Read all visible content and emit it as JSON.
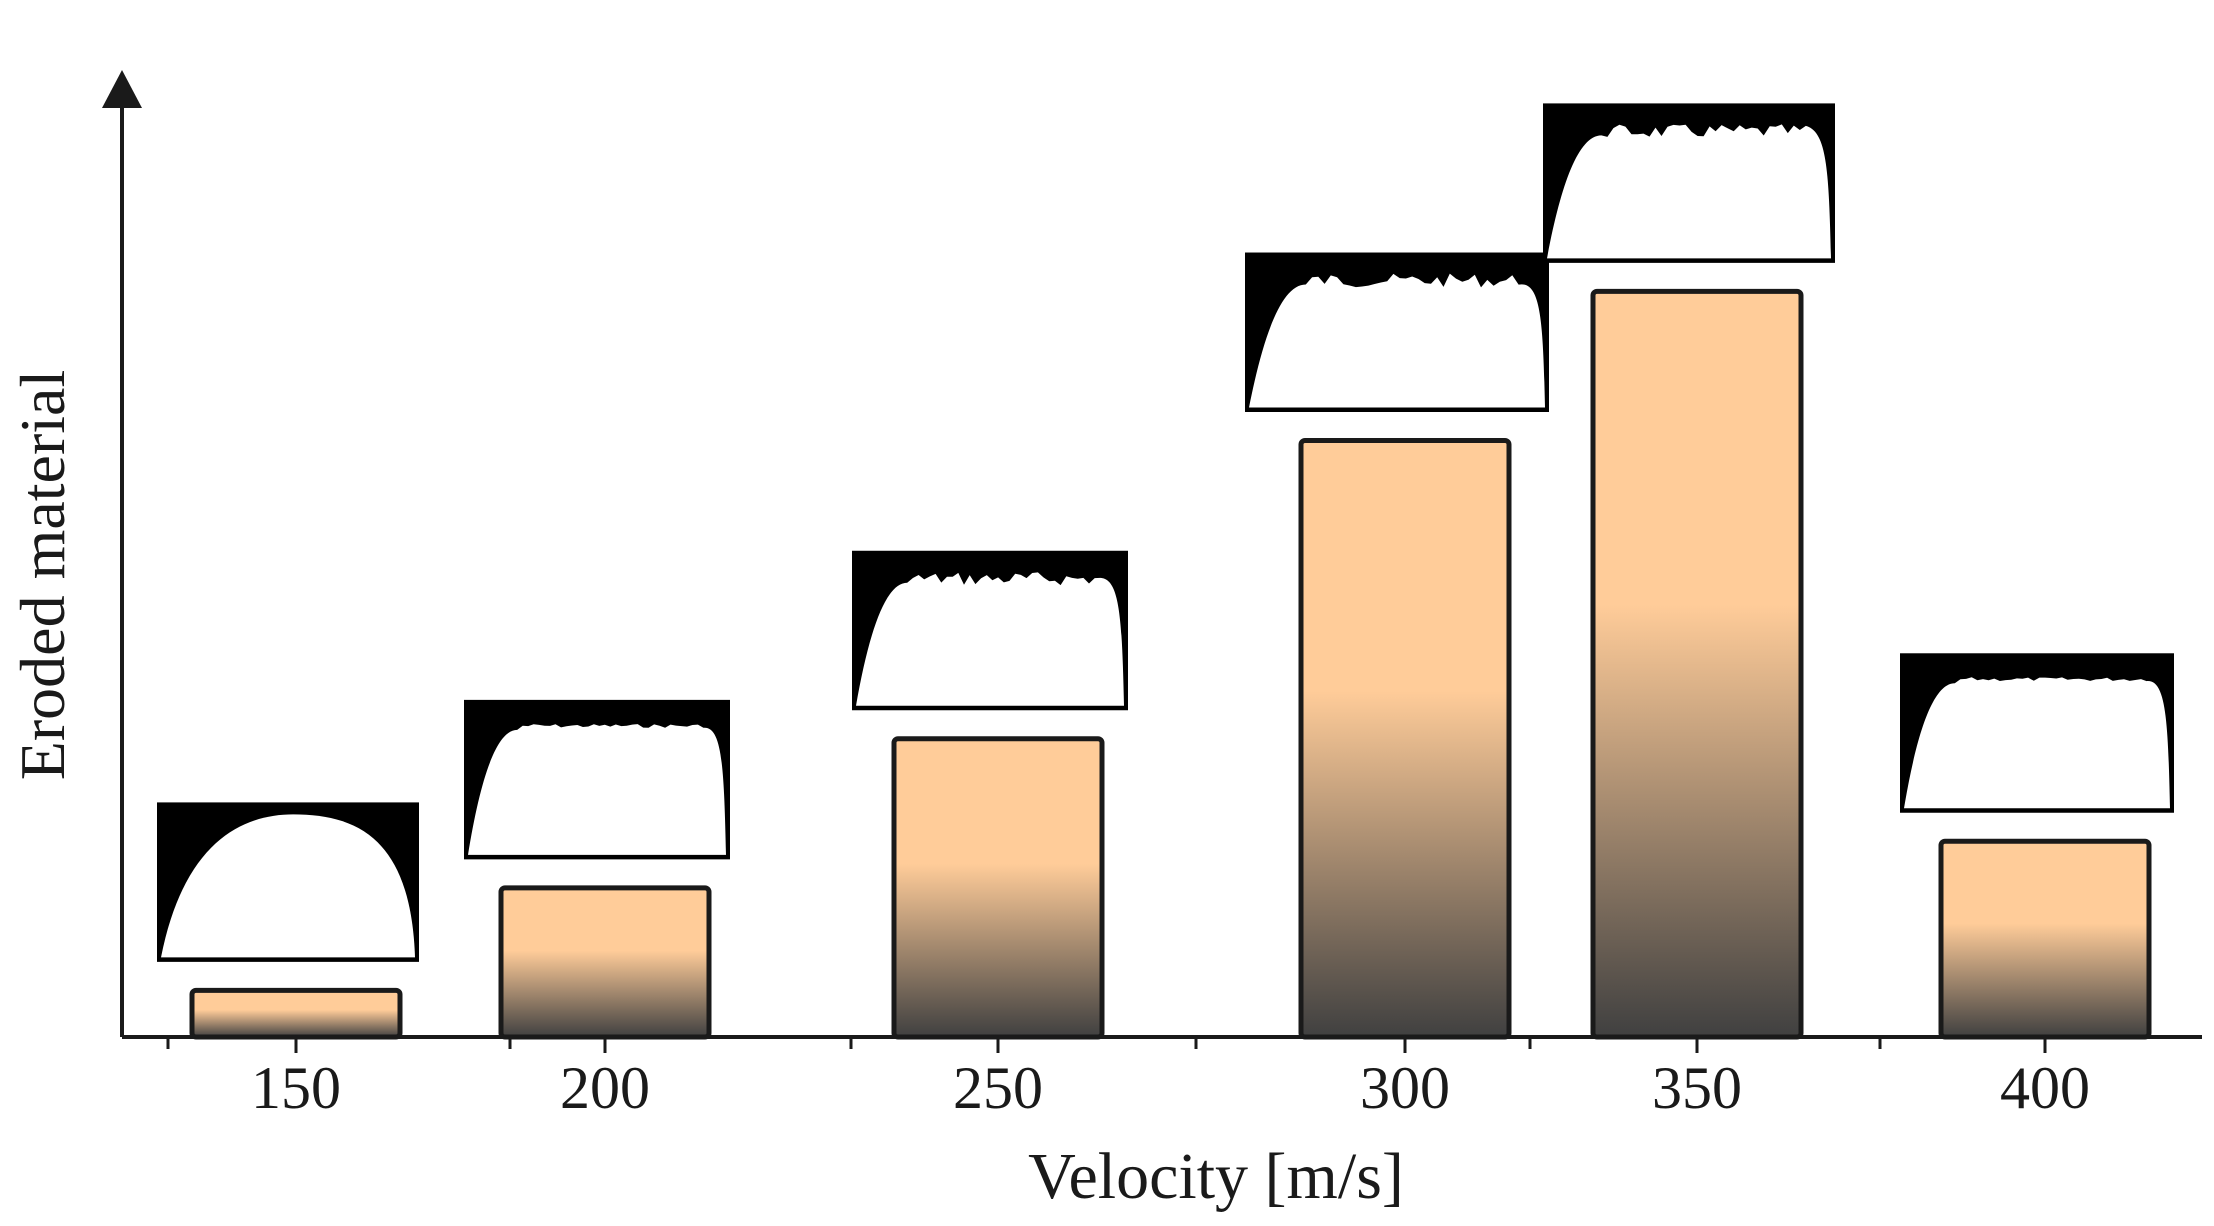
{
  "chart_data": {
    "type": "bar",
    "title": "",
    "xlabel": "Velocity [m/s]",
    "ylabel": "Eroded material",
    "categories": [
      "150",
      "200",
      "250",
      "300",
      "350",
      "400"
    ],
    "values": [
      5,
      16,
      32,
      64,
      80,
      21
    ],
    "ylim": [
      0,
      100
    ],
    "y_ticks_shown": false,
    "grid": false,
    "legend": "none",
    "insets": [
      {
        "category": "150",
        "profile": "dome"
      },
      {
        "category": "200",
        "profile": "rounded-flat"
      },
      {
        "category": "250",
        "profile": "flat-rough"
      },
      {
        "category": "300",
        "profile": "flat-rough"
      },
      {
        "category": "350",
        "profile": "flat-rough"
      },
      {
        "category": "400",
        "profile": "rounded-flat"
      }
    ],
    "colors": {
      "bar_top": "#ffcc99",
      "bar_bottom": "#404040",
      "bar_outline": "#1a1a1a",
      "inset_background": "#000000",
      "inset_fill": "#ffffff",
      "axis": "#1a1a1a"
    }
  }
}
